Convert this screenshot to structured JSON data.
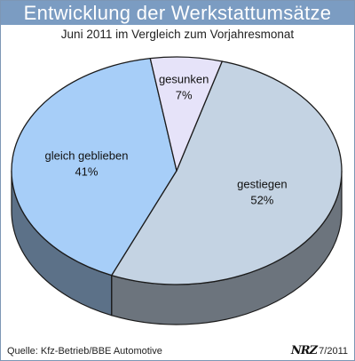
{
  "header": {
    "title": "Entwicklung der Werkstattumsätze",
    "subtitle": "Juni 2011 im Vergleich zum Vorjahresmonat"
  },
  "chart_data": {
    "type": "pie",
    "title": "Entwicklung der Werkstattumsätze",
    "subtitle": "Juni 2011 im Vergleich zum Vorjahresmonat",
    "slices": [
      {
        "label": "gestiegen",
        "value": 52,
        "value_label": "52%",
        "color": "#c4d3e3"
      },
      {
        "label": "gleich geblieben",
        "value": 41,
        "value_label": "41%",
        "color": "#a7cef8"
      },
      {
        "label": "gesunken",
        "value": 7,
        "value_label": "7%",
        "color": "#e6e3f9"
      }
    ],
    "style": "3d"
  },
  "footer": {
    "source": "Quelle: Kfz-Betrieb/BBE Automotive",
    "logo_text": "NRZ",
    "date": "7/2011"
  }
}
